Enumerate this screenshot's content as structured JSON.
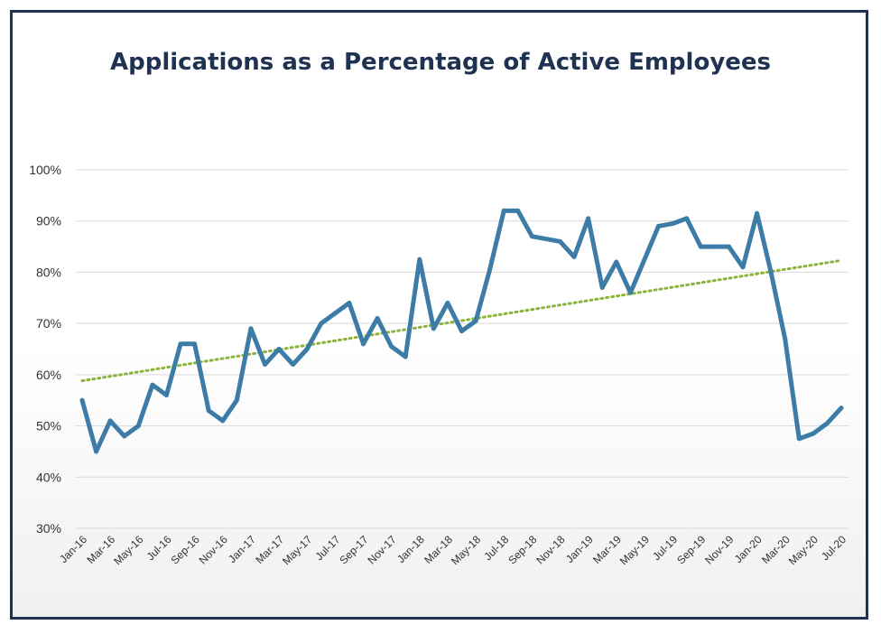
{
  "chart_data": {
    "type": "line",
    "title": "Applications as a Percentage of Active Employees",
    "xlabel": "",
    "ylabel": "",
    "ylim": [
      30,
      100
    ],
    "y_ticks": [
      "30%",
      "40%",
      "50%",
      "60%",
      "70%",
      "80%",
      "90%",
      "100%"
    ],
    "y_tick_values": [
      30,
      40,
      50,
      60,
      70,
      80,
      90,
      100
    ],
    "x_tick_labels": [
      "Jan-16",
      "Mar-16",
      "May-16",
      "Jul-16",
      "Sep-16",
      "Nov-16",
      "Jan-17",
      "Mar-17",
      "May-17",
      "Jul-17",
      "Sep-17",
      "Nov-17",
      "Jan-18",
      "Mar-18",
      "May-18",
      "Jul-18",
      "Sep-18",
      "Nov-18",
      "Jan-19",
      "Mar-19",
      "May-19",
      "Jul-19",
      "Sep-19",
      "Nov-19",
      "Jan-20",
      "Mar-20",
      "May-20",
      "Jul-20"
    ],
    "x": [
      "Jan-16",
      "Feb-16",
      "Mar-16",
      "Apr-16",
      "May-16",
      "Jun-16",
      "Jul-16",
      "Aug-16",
      "Sep-16",
      "Oct-16",
      "Nov-16",
      "Dec-16",
      "Jan-17",
      "Feb-17",
      "Mar-17",
      "Apr-17",
      "May-17",
      "Jun-17",
      "Jul-17",
      "Aug-17",
      "Sep-17",
      "Oct-17",
      "Nov-17",
      "Dec-17",
      "Jan-18",
      "Feb-18",
      "Mar-18",
      "Apr-18",
      "May-18",
      "Jun-18",
      "Jul-18",
      "Aug-18",
      "Sep-18",
      "Oct-18",
      "Nov-18",
      "Dec-18",
      "Jan-19",
      "Feb-19",
      "Mar-19",
      "Apr-19",
      "May-19",
      "Jun-19",
      "Jul-19",
      "Aug-19",
      "Sep-19",
      "Oct-19",
      "Nov-19",
      "Dec-19",
      "Jan-20",
      "Feb-20",
      "Mar-20",
      "Apr-20",
      "May-20",
      "Jun-20",
      "Jul-20"
    ],
    "series": [
      {
        "color": "#3c7ca6",
        "values": [
          55,
          45,
          51,
          48,
          50,
          58,
          56,
          66,
          66,
          53,
          51,
          55,
          69,
          62,
          65,
          62,
          65,
          70,
          72,
          74,
          66,
          71,
          65.5,
          63.5,
          82.5,
          69,
          74,
          68.5,
          70.5,
          80.5,
          92,
          92,
          87,
          86.5,
          86,
          83,
          90.5,
          77,
          82,
          76,
          82.5,
          89,
          89.5,
          90.5,
          85,
          85,
          85,
          81,
          91.5,
          80,
          67,
          47.5,
          48.5,
          50.5,
          53.5
        ]
      }
    ],
    "trendline": {
      "type": "linear",
      "color": "#8ab43c",
      "style": "dotted",
      "start_value": 58.8,
      "end_value": 82.3
    },
    "grid": true,
    "legend": "none"
  }
}
